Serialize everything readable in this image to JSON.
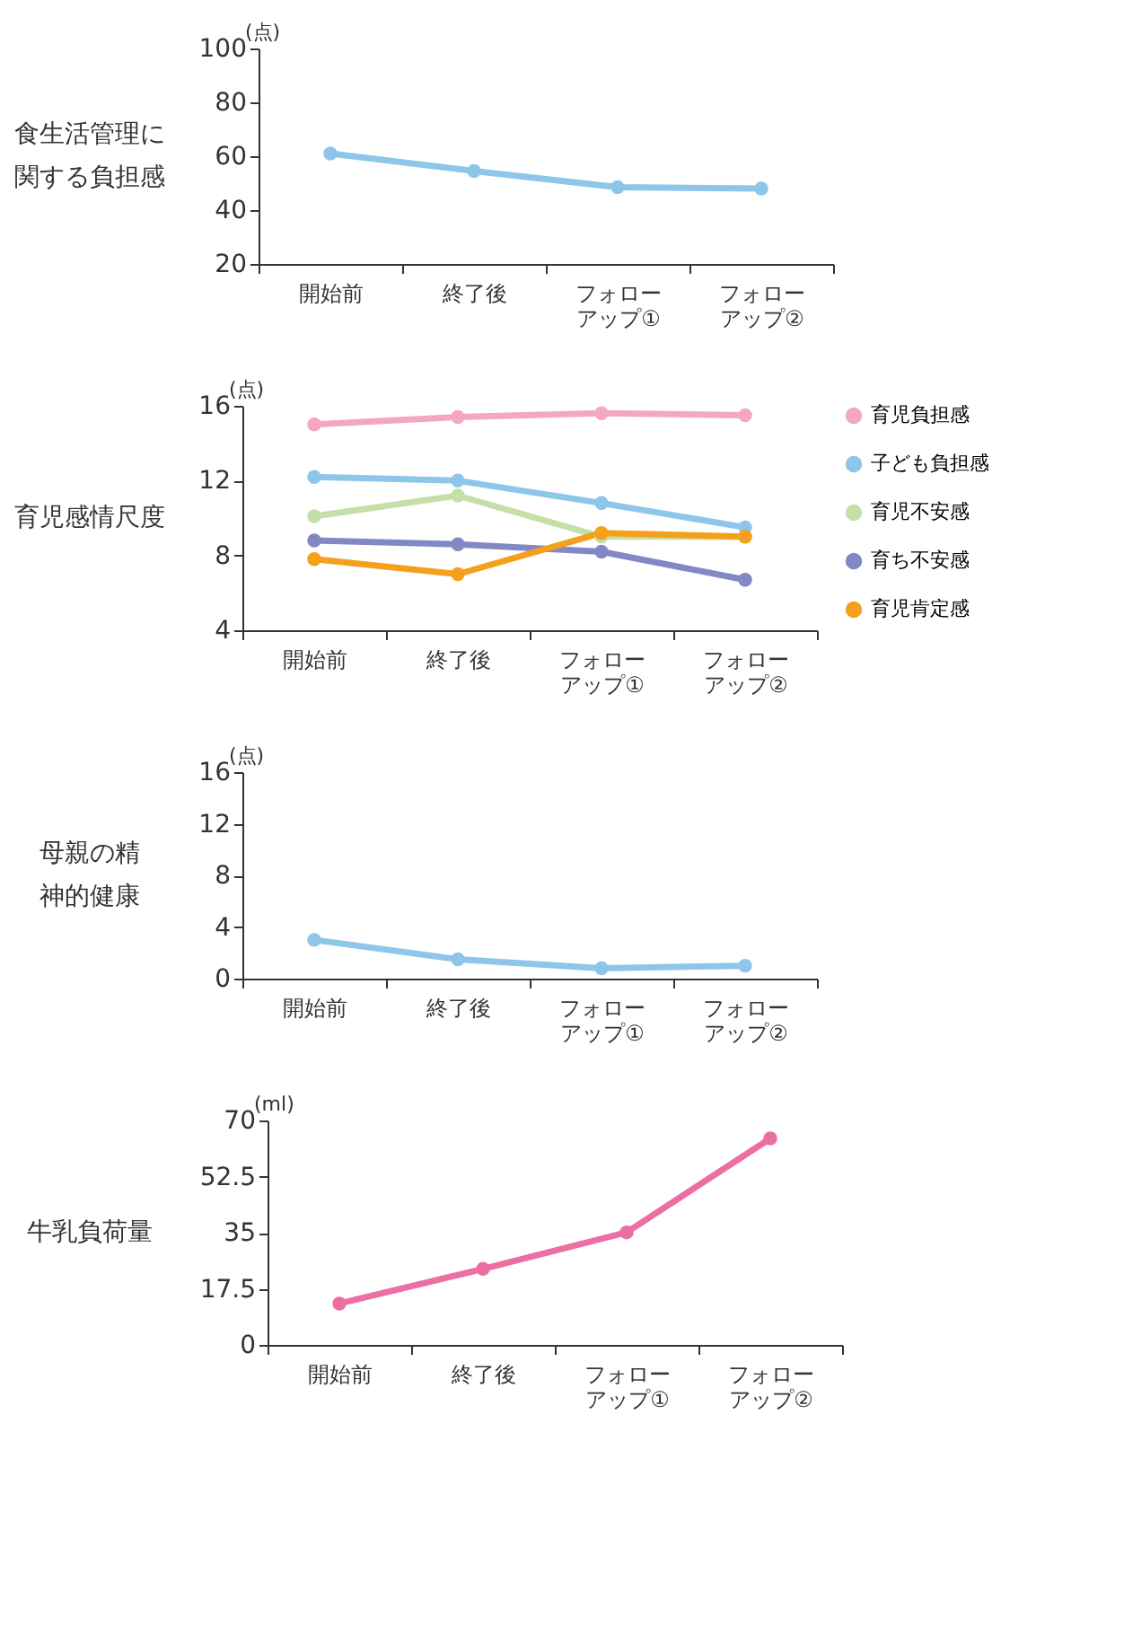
{
  "chart_data": [
    {
      "type": "line",
      "title": "食生活管理に関する負担感",
      "ylabel": "(点)",
      "categories": [
        "開始前",
        "終了後",
        "フォローアップ①",
        "フォローアップ②"
      ],
      "ylim": [
        20,
        100
      ],
      "yticks": [
        20,
        40,
        60,
        80,
        100
      ],
      "grid": false,
      "marker": "circle",
      "line_style": "solid",
      "series": [
        {
          "color": "#8ec6ea",
          "values": [
            61,
            54.5,
            48.5,
            48
          ]
        }
      ]
    },
    {
      "type": "line",
      "title": "育児感情尺度",
      "ylabel": "(点)",
      "categories": [
        "開始前",
        "終了後",
        "フォローアップ①",
        "フォローアップ②"
      ],
      "ylim": [
        4,
        16
      ],
      "yticks": [
        4,
        8,
        12,
        16
      ],
      "grid": false,
      "marker": "circle",
      "line_style": "solid",
      "legend": "right",
      "series": [
        {
          "name": "育児負担感",
          "color": "#f4a7c4",
          "values": [
            15.0,
            15.4,
            15.6,
            15.5
          ]
        },
        {
          "name": "子ども負担感",
          "color": "#8ec6ea",
          "values": [
            12.2,
            12.0,
            10.8,
            9.5
          ]
        },
        {
          "name": "育児不安感",
          "color": "#c4e0a8",
          "values": [
            10.1,
            11.2,
            9.0,
            9.0
          ]
        },
        {
          "name": "育ち不安感",
          "color": "#8189c4",
          "values": [
            8.8,
            8.6,
            8.2,
            6.7
          ]
        },
        {
          "name": "育児肯定感",
          "color": "#f5a01c",
          "values": [
            7.8,
            7.0,
            9.2,
            9.0
          ]
        }
      ]
    },
    {
      "type": "line",
      "title": "母親の精神的健康",
      "ylabel": "(点)",
      "categories": [
        "開始前",
        "終了後",
        "フォローアップ①",
        "フォローアップ②"
      ],
      "ylim": [
        0,
        16
      ],
      "yticks": [
        0,
        4,
        8,
        12,
        16
      ],
      "grid": false,
      "marker": "circle",
      "line_style": "solid",
      "series": [
        {
          "color": "#8ec6ea",
          "values": [
            3.0,
            1.5,
            0.8,
            1.0
          ]
        }
      ]
    },
    {
      "type": "line",
      "title": "牛乳負荷量",
      "ylabel": "(ml)",
      "categories": [
        "開始前",
        "終了後",
        "フォローアップ①",
        "フォローアップ②"
      ],
      "ylim": [
        0,
        70
      ],
      "yticks": [
        0,
        17.5,
        35,
        52.5,
        70
      ],
      "grid": false,
      "marker": "circle",
      "line_style": "solid",
      "series": [
        {
          "color": "#ec6fa3",
          "values": [
            12.9,
            23.7,
            35.1,
            64.4
          ]
        }
      ]
    }
  ]
}
